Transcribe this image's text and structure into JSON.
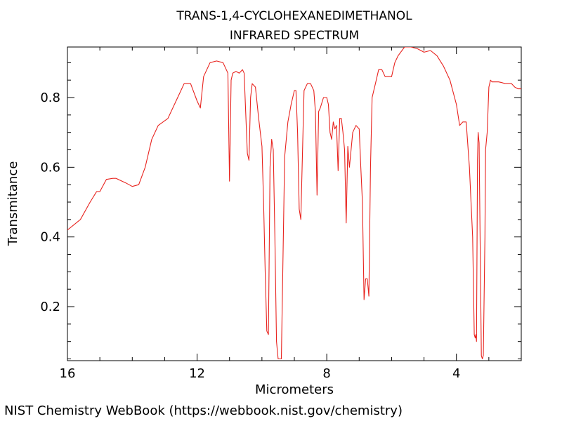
{
  "chart_data": {
    "type": "line",
    "title_lines": [
      "TRANS-1,4-CYCLOHEXANEDIMETHANOL",
      "INFRARED SPECTRUM"
    ],
    "xlabel": "Micrometers",
    "ylabel": "Transmitance",
    "xlim": [
      16,
      2
    ],
    "ylim": [
      0.045,
      0.945
    ],
    "x_ticks": [
      16,
      12,
      8,
      4
    ],
    "y_ticks": [
      0.2,
      0.4,
      0.6,
      0.8
    ],
    "x_tick_labels": [
      "16",
      "12",
      "8",
      "4"
    ],
    "y_tick_labels": [
      "0.2",
      "0.4",
      "0.6",
      "0.8"
    ],
    "grid": false,
    "series": [
      {
        "color": "#e8231e",
        "x": [
          16.0,
          15.6,
          15.3,
          15.1,
          15.0,
          14.8,
          14.6,
          14.5,
          14.2,
          14.0,
          13.8,
          13.6,
          13.4,
          13.2,
          12.9,
          12.6,
          12.4,
          12.2,
          12.0,
          11.9,
          11.8,
          11.6,
          11.4,
          11.2,
          11.05,
          11.0,
          10.95,
          10.9,
          10.8,
          10.7,
          10.6,
          10.55,
          10.45,
          10.4,
          10.35,
          10.3,
          10.2,
          10.1,
          10.0,
          9.95,
          9.9,
          9.85,
          9.8,
          9.75,
          9.7,
          9.65,
          9.6,
          9.55,
          9.5,
          9.45,
          9.4,
          9.3,
          9.2,
          9.1,
          9.0,
          8.95,
          8.9,
          8.85,
          8.8,
          8.7,
          8.6,
          8.5,
          8.4,
          8.35,
          8.3,
          8.25,
          8.2,
          8.1,
          8.0,
          7.95,
          7.9,
          7.85,
          7.8,
          7.75,
          7.7,
          7.65,
          7.6,
          7.55,
          7.5,
          7.45,
          7.4,
          7.35,
          7.3,
          7.2,
          7.1,
          7.0,
          6.95,
          6.9,
          6.85,
          6.8,
          6.75,
          6.7,
          6.65,
          6.6,
          6.5,
          6.4,
          6.3,
          6.2,
          6.0,
          5.9,
          5.8,
          5.6,
          5.4,
          5.2,
          5.0,
          4.8,
          4.6,
          4.4,
          4.2,
          4.0,
          3.9,
          3.8,
          3.7,
          3.6,
          3.5,
          3.45,
          3.42,
          3.4,
          3.38,
          3.35,
          3.33,
          3.3,
          3.27,
          3.23,
          3.2,
          3.17,
          3.12,
          3.1,
          3.05,
          3.0,
          2.95,
          2.9,
          2.85,
          2.8,
          2.7,
          2.6,
          2.5,
          2.4,
          2.3,
          2.2,
          2.1,
          2.0
        ],
        "y": [
          0.42,
          0.45,
          0.5,
          0.53,
          0.53,
          0.565,
          0.568,
          0.568,
          0.555,
          0.545,
          0.55,
          0.6,
          0.68,
          0.72,
          0.74,
          0.8,
          0.84,
          0.84,
          0.79,
          0.77,
          0.86,
          0.9,
          0.905,
          0.9,
          0.87,
          0.56,
          0.85,
          0.87,
          0.875,
          0.87,
          0.88,
          0.87,
          0.64,
          0.62,
          0.8,
          0.84,
          0.83,
          0.74,
          0.66,
          0.5,
          0.3,
          0.13,
          0.12,
          0.6,
          0.68,
          0.65,
          0.4,
          0.1,
          0.05,
          0.05,
          0.05,
          0.63,
          0.73,
          0.78,
          0.82,
          0.82,
          0.7,
          0.48,
          0.45,
          0.82,
          0.84,
          0.84,
          0.82,
          0.76,
          0.52,
          0.76,
          0.77,
          0.8,
          0.8,
          0.78,
          0.7,
          0.68,
          0.73,
          0.71,
          0.72,
          0.59,
          0.74,
          0.74,
          0.7,
          0.65,
          0.44,
          0.66,
          0.6,
          0.7,
          0.72,
          0.71,
          0.6,
          0.5,
          0.22,
          0.28,
          0.28,
          0.23,
          0.6,
          0.8,
          0.84,
          0.88,
          0.88,
          0.86,
          0.86,
          0.9,
          0.92,
          0.945,
          0.945,
          0.94,
          0.93,
          0.935,
          0.92,
          0.89,
          0.85,
          0.78,
          0.72,
          0.73,
          0.73,
          0.6,
          0.4,
          0.12,
          0.11,
          0.12,
          0.1,
          0.62,
          0.7,
          0.67,
          0.4,
          0.06,
          0.05,
          0.06,
          0.4,
          0.65,
          0.7,
          0.83,
          0.85,
          0.845,
          0.845,
          0.845,
          0.845,
          0.843,
          0.84,
          0.84,
          0.84,
          0.83,
          0.825,
          0.825
        ]
      }
    ]
  },
  "footer": {
    "credit": "NIST Chemistry WebBook (https://webbook.nist.gov/chemistry)"
  }
}
